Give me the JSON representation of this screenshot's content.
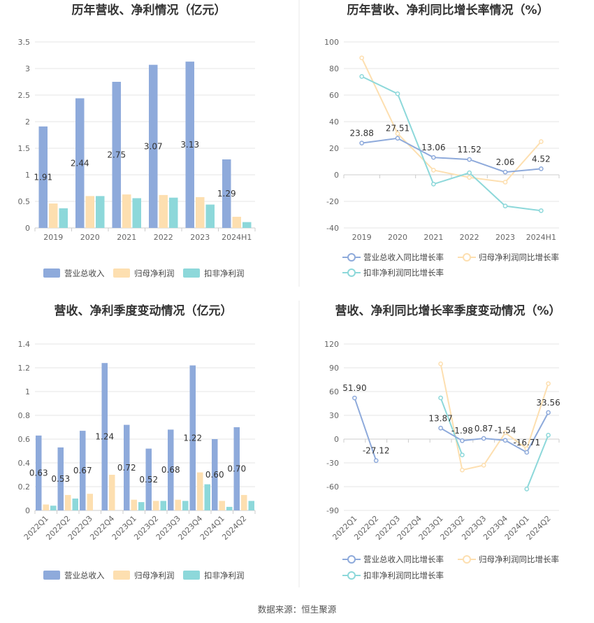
{
  "chart_data": [
    {
      "type": "bar",
      "title": "历年营收、净利情况（亿元）",
      "categories": [
        "2019",
        "2020",
        "2021",
        "2022",
        "2023",
        "2024H1"
      ],
      "series": [
        {
          "name": "营业总收入",
          "values": [
            1.91,
            2.44,
            2.75,
            3.07,
            3.13,
            1.29
          ],
          "color": "#8eaadb"
        },
        {
          "name": "归母净利润",
          "values": [
            0.46,
            0.6,
            0.63,
            0.62,
            0.58,
            0.21
          ],
          "color": "#fddfb0"
        },
        {
          "name": "扣非净利润",
          "values": [
            0.37,
            0.6,
            0.56,
            0.57,
            0.44,
            0.11
          ],
          "color": "#8dd8da"
        }
      ],
      "labels": [
        "1.91",
        "2.44",
        "2.75",
        "3.07",
        "3.13",
        "1.29"
      ],
      "ylim": [
        0,
        3.5
      ],
      "yticks": [
        "0",
        "0.5",
        "1",
        "1.5",
        "2",
        "2.5",
        "3",
        "3.5"
      ],
      "legend": "bottom"
    },
    {
      "type": "line",
      "title": "历年营收、净利同比增长率情况（%）",
      "categories": [
        "2019",
        "2020",
        "2021",
        "2022",
        "2023",
        "2024H1"
      ],
      "series": [
        {
          "name": "营业总收入同比增长率",
          "values": [
            23.88,
            27.51,
            13.06,
            11.52,
            2.06,
            4.52
          ],
          "color": "#8eaadb"
        },
        {
          "name": "归母净利润同比增长率",
          "values": [
            88,
            31,
            3.5,
            -2,
            -5.5,
            25
          ],
          "color": "#fddfb0"
        },
        {
          "name": "扣非净利润同比增长率",
          "values": [
            74,
            61,
            -7,
            1.5,
            -23.5,
            -27
          ],
          "color": "#8dd8da"
        }
      ],
      "labels": [
        "23.88",
        "27.51",
        "13.06",
        "11.52",
        "2.06",
        "4.52"
      ],
      "ylim": [
        -40,
        100
      ],
      "yticks": [
        "-40",
        "-20",
        "0",
        "20",
        "40",
        "60",
        "80",
        "100"
      ],
      "legend": "bottom"
    },
    {
      "type": "bar",
      "title": "营收、净利季度变动情况（亿元）",
      "categories": [
        "2022Q1",
        "2022Q2",
        "2022Q3",
        "2022Q4",
        "2023Q1",
        "2023Q2",
        "2023Q3",
        "2023Q4",
        "2024Q1",
        "2024Q2"
      ],
      "series": [
        {
          "name": "营业总收入",
          "values": [
            0.63,
            0.53,
            0.67,
            1.24,
            0.72,
            0.52,
            0.68,
            1.22,
            0.6,
            0.7
          ],
          "color": "#8eaadb"
        },
        {
          "name": "归母净利润",
          "values": [
            0.05,
            0.13,
            0.14,
            0.3,
            0.09,
            0.08,
            0.09,
            0.32,
            0.08,
            0.13
          ],
          "color": "#fddfb0"
        },
        {
          "name": "扣非净利润",
          "values": [
            0.04,
            0.1,
            null,
            null,
            0.07,
            0.08,
            0.08,
            0.22,
            0.03,
            0.08
          ],
          "color": "#8dd8da"
        }
      ],
      "labels": [
        "0.63",
        "0.53",
        "0.67",
        "1.24",
        "0.72",
        "0.52",
        "0.68",
        "1.22",
        "0.60",
        "0.70"
      ],
      "ylim": [
        0,
        1.4
      ],
      "yticks": [
        "0",
        "0.2",
        "0.4",
        "0.6",
        "0.8",
        "1",
        "1.2",
        "1.4"
      ],
      "legend": "bottom"
    },
    {
      "type": "line",
      "title": "营收、净利同比增长率季度变动情况（%）",
      "categories": [
        "2022Q1",
        "2022Q2",
        "2022Q3",
        "2022Q4",
        "2023Q1",
        "2023Q2",
        "2023Q3",
        "2023Q4",
        "2024Q1",
        "2024Q2"
      ],
      "series": [
        {
          "name": "营业总收入同比增长率",
          "values": [
            51.9,
            -27.12,
            null,
            null,
            13.87,
            -1.98,
            0.87,
            -1.54,
            -16.71,
            33.56
          ],
          "color": "#8eaadb"
        },
        {
          "name": "归母净利润同比增长率",
          "values": [
            null,
            null,
            null,
            null,
            95,
            -39,
            -33,
            8,
            -12,
            70
          ],
          "color": "#fddfb0"
        },
        {
          "name": "扣非净利润同比增长率",
          "values": [
            null,
            null,
            null,
            null,
            52,
            -20,
            null,
            null,
            -63,
            5
          ],
          "color": "#8dd8da"
        }
      ],
      "labels": [
        "51.90",
        "-27.12",
        "",
        "",
        "13.87",
        "-1.98",
        "0.87",
        "-1.54",
        "-16.71",
        "33.56"
      ],
      "ylim": [
        -90,
        120
      ],
      "yticks": [
        "-90",
        "-60",
        "-30",
        "0",
        "30",
        "60",
        "90",
        "120"
      ],
      "legend": "bottom"
    }
  ],
  "source": "数据来源：恒生聚源"
}
